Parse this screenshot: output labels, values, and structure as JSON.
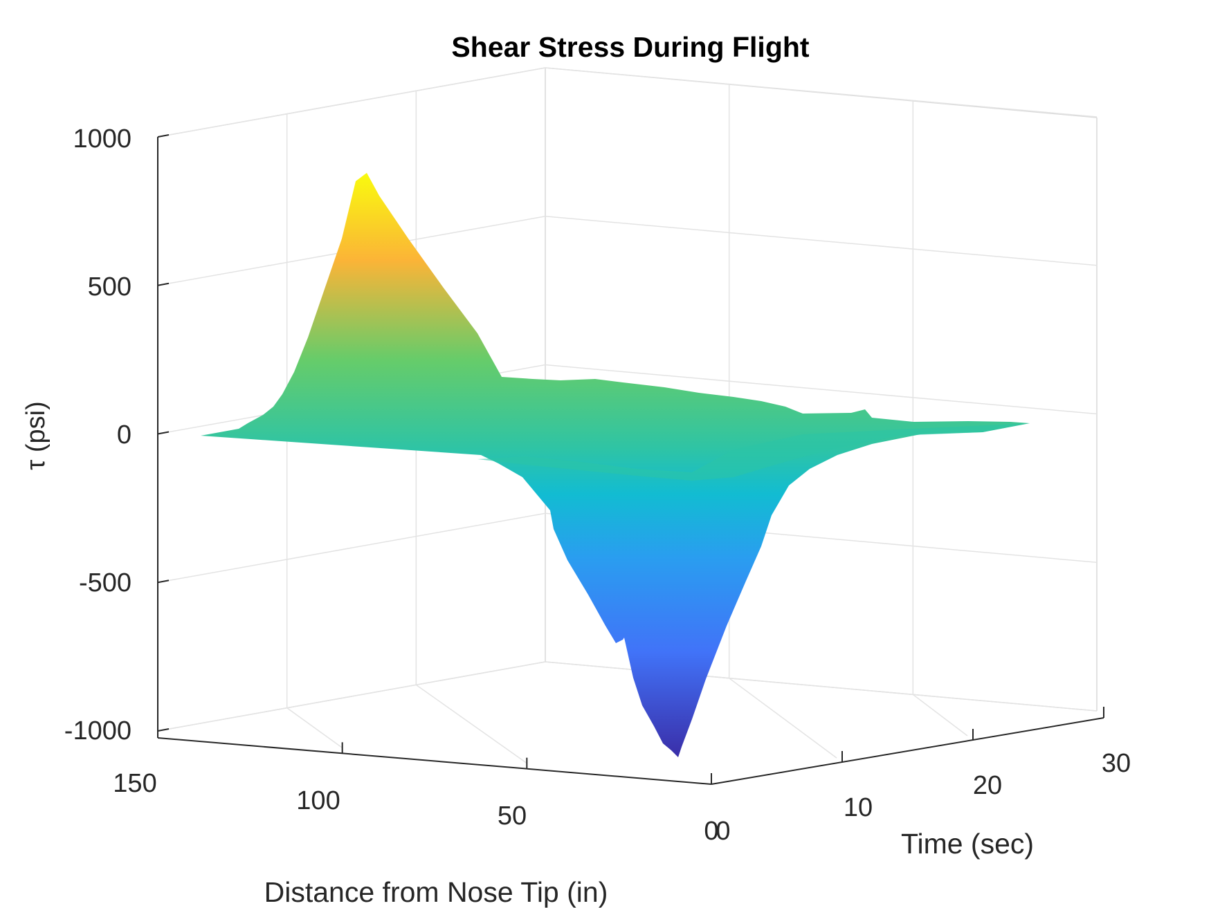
{
  "chart_data": {
    "type": "surface",
    "title": "Shear Stress During Flight",
    "xlabel": "Distance from Nose Tip (in)",
    "ylabel": "Time (sec)",
    "zlabel": "τ (psi)",
    "x_ticks": [
      "150",
      "100",
      "50",
      "0"
    ],
    "y_ticks": [
      "0",
      "10",
      "20",
      "30"
    ],
    "z_ticks": [
      "1000",
      "500",
      "0",
      "-500",
      "-1000"
    ],
    "xlim": [
      0,
      150
    ],
    "ylim": [
      0,
      30
    ],
    "zlim": [
      -1000,
      1000
    ],
    "grid": true,
    "colormap": "parula",
    "summary": {
      "positive_peak": {
        "distance_in": 125,
        "time_sec": 6,
        "tau_psi": 870
      },
      "negative_peak": {
        "distance_in": 62,
        "time_sec": 8,
        "tau_psi": -1040
      },
      "baseline_tau_psi": 0
    },
    "colors": {
      "max": "#f9fb0e",
      "high": "#fbb437",
      "mid": "#66cc6a",
      "zero": "#2fc4a4",
      "low": "#12bcd2",
      "lower": "#2a9df0",
      "min_mid": "#4173f8",
      "min": "#3a2ea8"
    }
  }
}
